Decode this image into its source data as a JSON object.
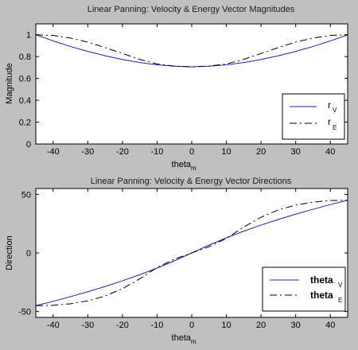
{
  "colors": {
    "background": "#c0c0c0",
    "axes_bg": "#ffffff",
    "velocity": "#1f1fbf",
    "energy": "#000000"
  },
  "chart_data": [
    {
      "type": "line",
      "title": "Linear Panning: Velocity & Energy Vector Magnitudes",
      "xlabel": "theta",
      "xlabel_sub": "m",
      "ylabel": "Magnitude",
      "xlim": [
        -45,
        45
      ],
      "ylim": [
        0,
        1.1
      ],
      "xticks": [
        "-40",
        "-30",
        "-20",
        "-10",
        "0",
        "10",
        "20",
        "30",
        "40"
      ],
      "yticks": [
        "0",
        "0.2",
        "0.4",
        "0.6",
        "0.8",
        "1"
      ],
      "legend_position": "bottom-right",
      "x": [
        -45,
        -40,
        -35,
        -30,
        -25,
        -20,
        -15,
        -10,
        -5,
        0,
        5,
        10,
        15,
        20,
        25,
        30,
        35,
        40,
        45
      ],
      "series": [
        {
          "name": "r",
          "name_sub": "V",
          "style": "solid",
          "values": [
            1.0,
            0.944,
            0.893,
            0.848,
            0.808,
            0.774,
            0.746,
            0.725,
            0.712,
            0.707,
            0.712,
            0.725,
            0.746,
            0.774,
            0.808,
            0.848,
            0.893,
            0.944,
            1.0
          ]
        },
        {
          "name": "r",
          "name_sub": "E",
          "style": "dashdot",
          "values": [
            1.0,
            0.994,
            0.97,
            0.933,
            0.883,
            0.829,
            0.775,
            0.733,
            0.713,
            0.707,
            0.713,
            0.733,
            0.775,
            0.829,
            0.883,
            0.933,
            0.97,
            0.994,
            1.0
          ]
        }
      ]
    },
    {
      "type": "line",
      "title": "Linear Panning: Velocity & Energy Vector Directions",
      "xlabel": "theta",
      "xlabel_sub": "m",
      "ylabel": "Direction",
      "xlim": [
        -45,
        45
      ],
      "ylim": [
        -55,
        55
      ],
      "xticks": [
        "-40",
        "-30",
        "-20",
        "-10",
        "0",
        "10",
        "20",
        "30",
        "40"
      ],
      "yticks": [
        "-50",
        "0",
        "50"
      ],
      "legend_position": "bottom-right",
      "x": [
        -45,
        -40,
        -35,
        -30,
        -25,
        -20,
        -15,
        -10,
        -5,
        0,
        5,
        10,
        15,
        20,
        25,
        30,
        35,
        40,
        45
      ],
      "series": [
        {
          "name": "theta",
          "name_sub": "V",
          "style": "solid",
          "values": [
            -45,
            -41.3,
            -37.3,
            -33.1,
            -28.6,
            -23.8,
            -18.6,
            -12.9,
            -6.7,
            0,
            6.7,
            12.9,
            18.6,
            23.8,
            28.6,
            33.1,
            37.3,
            41.3,
            45
          ]
        },
        {
          "name": "theta",
          "name_sub": "E",
          "style": "dashdot",
          "values": [
            -45,
            -44.7,
            -43.4,
            -40.9,
            -36.7,
            -30.5,
            -22.1,
            -12.4,
            -5.3,
            0,
            5.3,
            12.4,
            22.1,
            30.5,
            36.7,
            40.9,
            43.4,
            44.7,
            45
          ]
        }
      ]
    }
  ]
}
